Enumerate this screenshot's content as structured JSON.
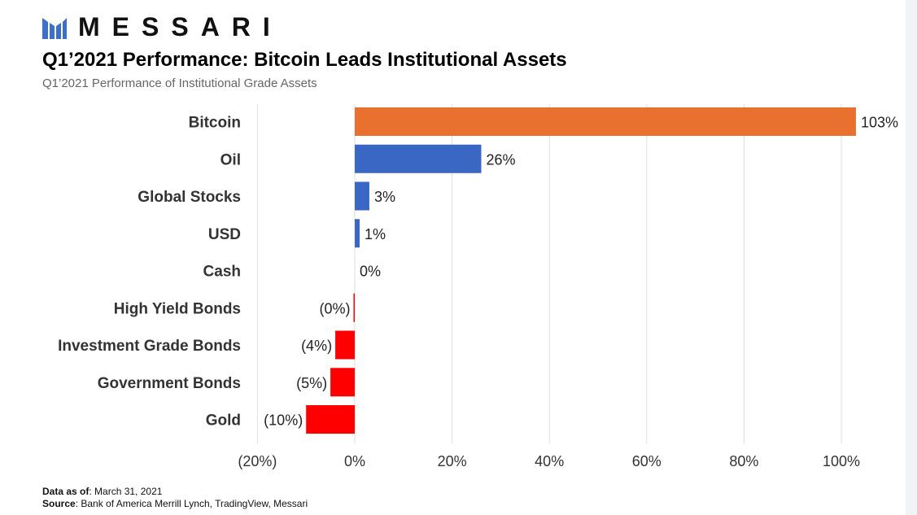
{
  "brand": {
    "name": "MESSARI",
    "logo_icon": "messari-logo-icon",
    "logo_color": "#3b6fd1"
  },
  "title": "Q1’2021 Performance: Bitcoin Leads Institutional Assets",
  "subtitle": "Q1’2021 Performance of Institutional Grade Assets",
  "chart_data": {
    "type": "bar",
    "orientation": "horizontal",
    "title": "Q1’2021 Performance: Bitcoin Leads Institutional Assets",
    "subtitle": "Q1’2021 Performance of Institutional Grade Assets",
    "xlabel": "",
    "ylabel": "",
    "xlim": [
      -20,
      100
    ],
    "x_ticks": [
      -20,
      0,
      20,
      40,
      60,
      80,
      100
    ],
    "x_tick_labels": [
      "(20%)",
      "0%",
      "20%",
      "40%",
      "60%",
      "80%",
      "100%"
    ],
    "grid": "vertical",
    "legend": "none",
    "categories": [
      "Bitcoin",
      "Oil",
      "Global Stocks",
      "USD",
      "Cash",
      "High Yield Bonds",
      "Investment Grade Bonds",
      "Government Bonds",
      "Gold"
    ],
    "values": [
      103,
      26,
      3,
      1,
      0,
      -0.1,
      -4,
      -5,
      -10
    ],
    "value_labels": [
      "103%",
      "26%",
      "3%",
      "1%",
      "0%",
      "(0%)",
      "(4%)",
      "(5%)",
      "(10%)"
    ],
    "colors": [
      "#e8712f",
      "#3a66c4",
      "#3a66c4",
      "#3a66c4",
      "#3a66c4",
      "#ff0000",
      "#ff0000",
      "#ff0000",
      "#ff0000"
    ]
  },
  "footer": {
    "data_as_of_label": "Data as of",
    "data_as_of_value": ": March 31, 2021",
    "source_label": "Source",
    "source_value": ": Bank of America Merrill Lynch, TradingView, Messari"
  }
}
